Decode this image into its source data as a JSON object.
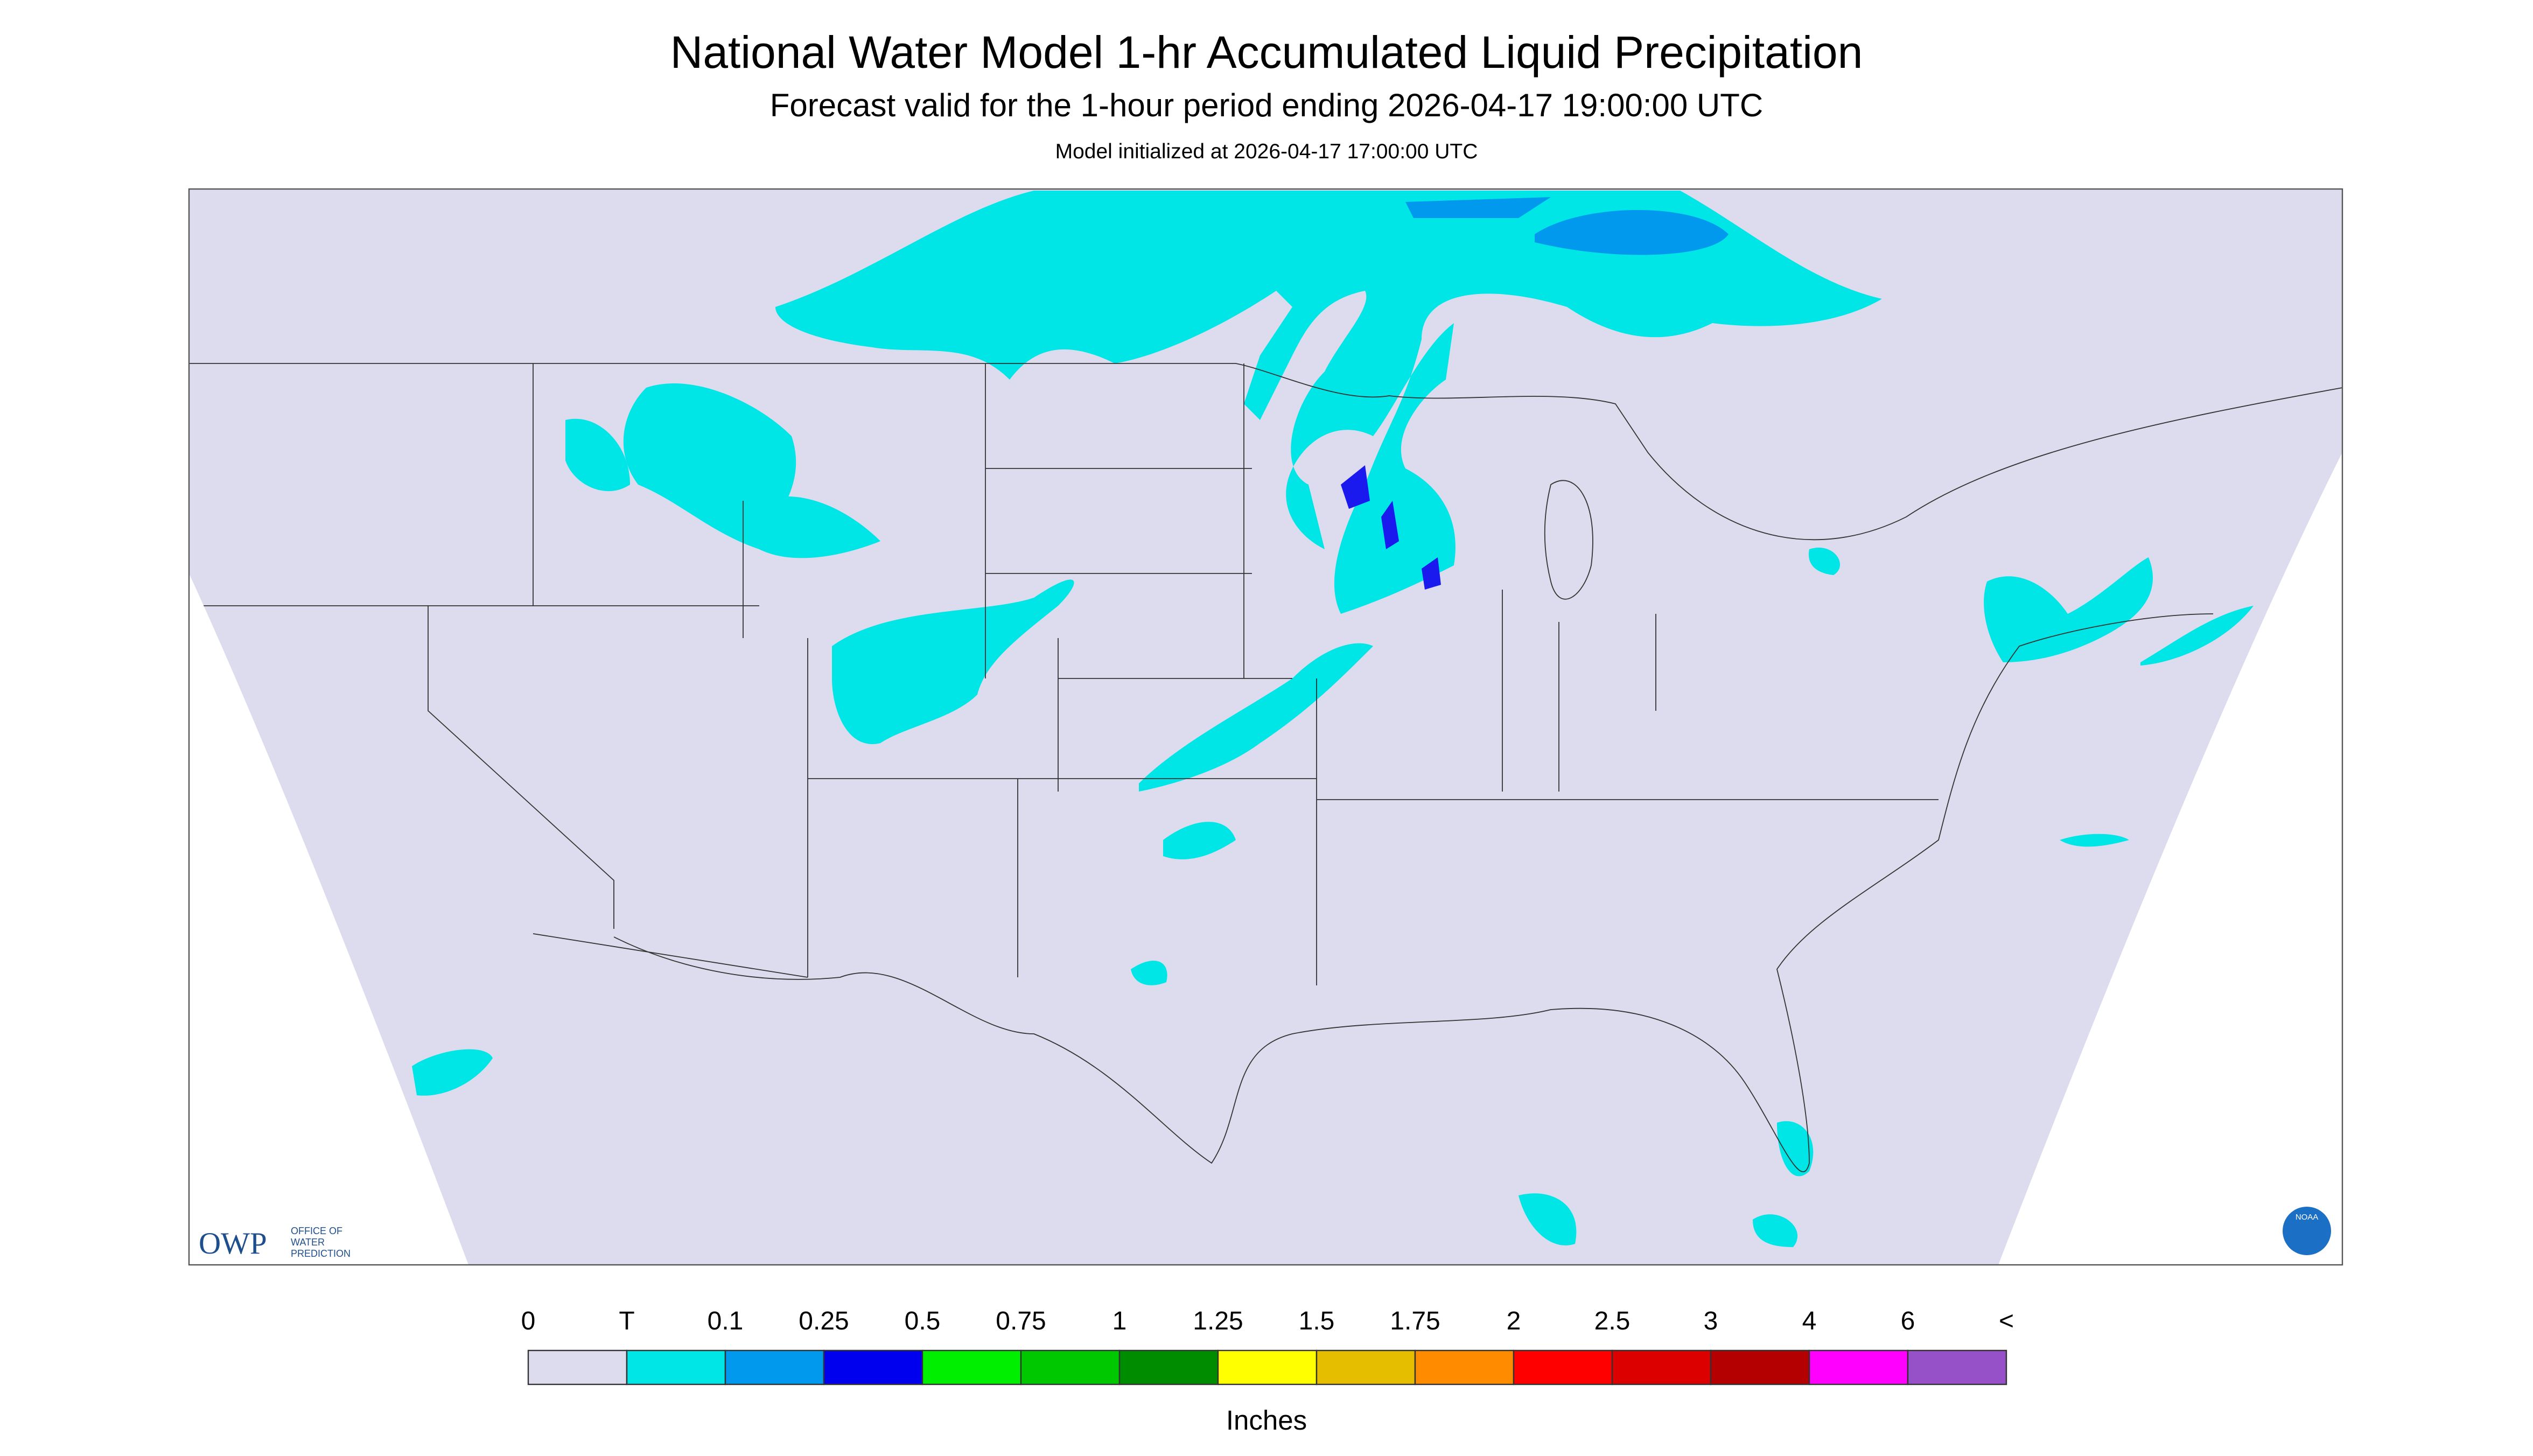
{
  "header": {
    "title": "National Water Model 1-hr Accumulated Liquid Precipitation",
    "subtitle": "Forecast valid for the 1-hour period ending 2026-04-17 19:00:00 UTC",
    "note": "Model initialized at 2026-04-17 17:00:00 UTC"
  },
  "legend": {
    "labels": [
      "0",
      "T",
      "0.1",
      "0.25",
      "0.5",
      "0.75",
      "1",
      "1.25",
      "1.5",
      "1.75",
      "2",
      "2.5",
      "3",
      "4",
      "6",
      "<"
    ],
    "colors": [
      "#dcdcee",
      "#00e5e5",
      "#0099ee",
      "#0000ee",
      "#00ee00",
      "#00c800",
      "#008c00",
      "#ffff00",
      "#e6be00",
      "#ff8c00",
      "#ff0000",
      "#dc0000",
      "#b40000",
      "#ff00ff",
      "#9650c8"
    ],
    "unit": "Inches"
  },
  "logos": {
    "owp": "OWP",
    "owp_text": [
      "OFFICE OF",
      "WATER",
      "PREDICTION"
    ],
    "noaa": "NOAA"
  }
}
